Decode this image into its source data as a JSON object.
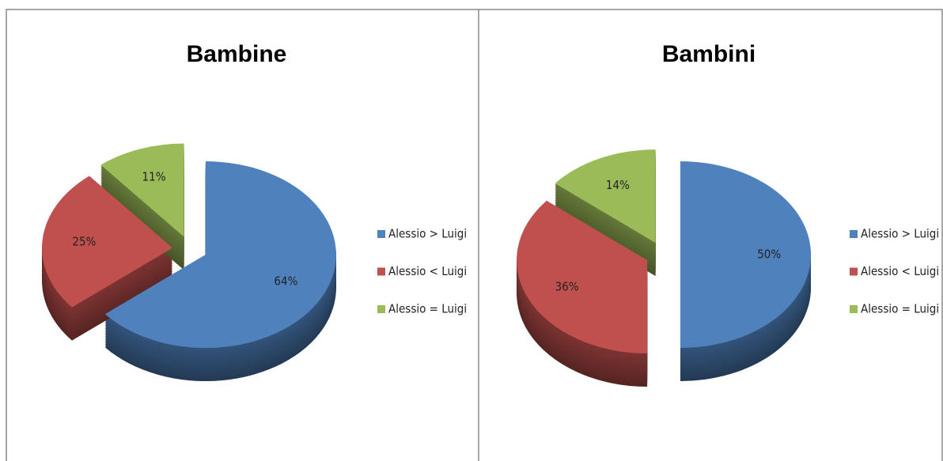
{
  "chart_data": [
    {
      "type": "pie",
      "title": "Bambine",
      "categories": [
        "Alessio > Luigi",
        "Alessio < Luigi",
        "Alessio = Luigi"
      ],
      "values": [
        64,
        25,
        11
      ],
      "value_labels": [
        "64%",
        "25%",
        "11%"
      ],
      "colors": [
        "#4f81bd",
        "#c0504d",
        "#9bbb59"
      ],
      "legend": "right"
    },
    {
      "type": "pie",
      "title": "Bambini",
      "categories": [
        "Alessio > Luigi",
        "Alessio < Luigi",
        "Alessio = Luigi"
      ],
      "values": [
        50,
        36,
        14
      ],
      "value_labels": [
        "50%",
        "36%",
        "14%"
      ],
      "colors": [
        "#4f81bd",
        "#c0504d",
        "#9bbb59"
      ],
      "legend": "right"
    }
  ]
}
